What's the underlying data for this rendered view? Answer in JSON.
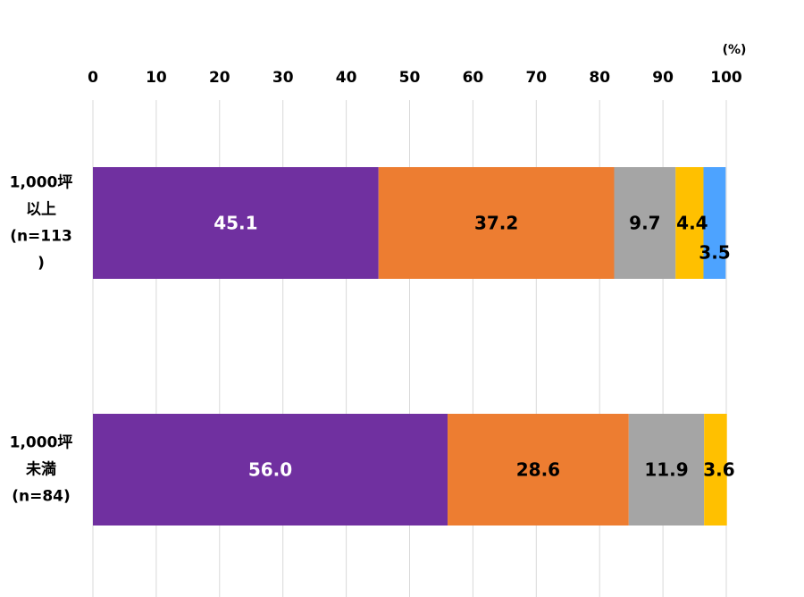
{
  "chart_data": {
    "type": "bar",
    "orientation": "horizontal",
    "stacked": true,
    "unit": "(%)",
    "xlim": [
      0,
      100
    ],
    "xticks": [
      "0",
      "10",
      "20",
      "30",
      "40",
      "50",
      "60",
      "70",
      "80",
      "90",
      "100"
    ],
    "grid": true,
    "categories": [
      [
        "1,000坪",
        "以上",
        "(n=113",
        ")"
      ],
      [
        "1,000坪",
        "未満",
        "(n=84)"
      ]
    ],
    "series": [
      {
        "color": "#7030a0",
        "label_color": "#ffffff",
        "values": [
          45.1,
          56.0
        ],
        "labels": [
          "45.1",
          "56.0"
        ]
      },
      {
        "color": "#ed7d31",
        "label_color": "#000000",
        "values": [
          37.2,
          28.6
        ],
        "labels": [
          "37.2",
          "28.6"
        ]
      },
      {
        "color": "#a5a5a5",
        "label_color": "#000000",
        "values": [
          9.7,
          11.9
        ],
        "labels": [
          "9.7",
          "11.9"
        ]
      },
      {
        "color": "#ffc000",
        "label_color": "#000000",
        "values": [
          4.4,
          3.6
        ],
        "labels": [
          "4.4",
          "3.6"
        ]
      },
      {
        "color": "#4da3ff",
        "label_color": "#000000",
        "values": [
          3.5,
          0
        ],
        "labels": [
          "3.5",
          ""
        ]
      }
    ]
  }
}
